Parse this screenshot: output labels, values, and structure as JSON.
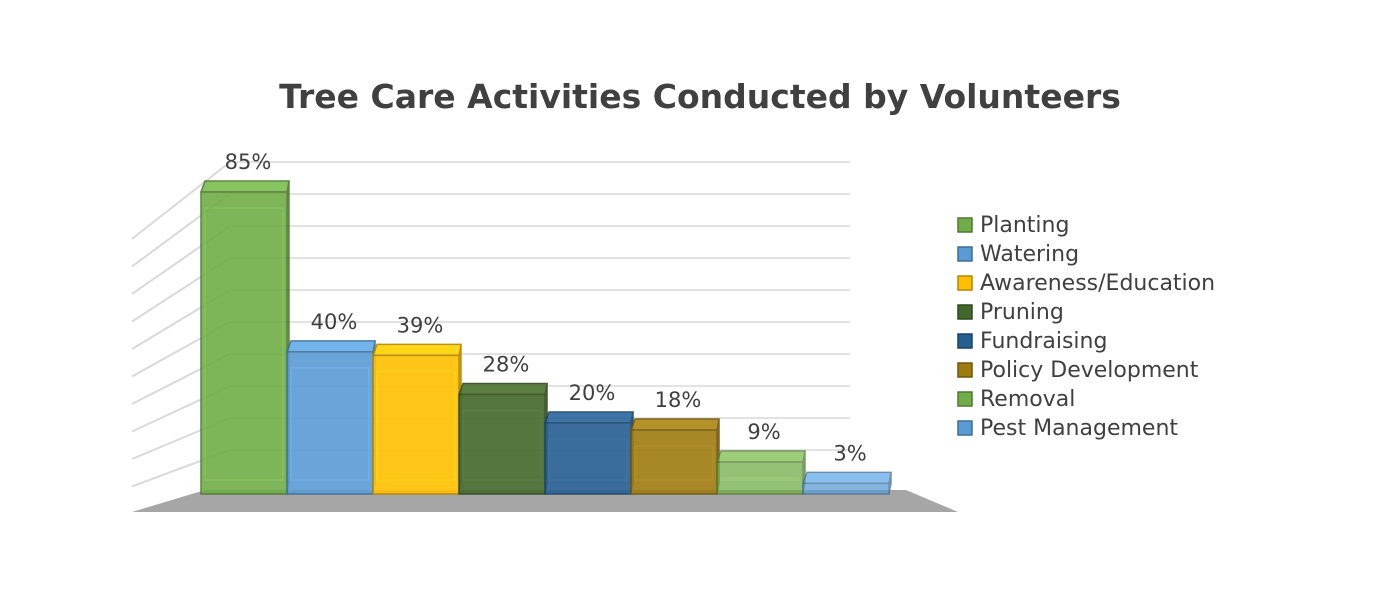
{
  "chart_data": {
    "type": "bar",
    "title": "Tree Care Activities Conducted by Volunteers",
    "categories": [
      "Planting",
      "Watering",
      "Awareness/Education",
      "Pruning",
      "Fundraising",
      "Policy Development",
      "Removal",
      "Pest Management"
    ],
    "values": [
      85,
      40,
      39,
      28,
      20,
      18,
      9,
      3
    ],
    "value_labels": [
      "85%",
      "40%",
      "39%",
      "28%",
      "20%",
      "18%",
      "9%",
      "3%"
    ],
    "unit": "%",
    "ylim": [
      0,
      100
    ],
    "grid": true,
    "legend_position": "right",
    "style": "3d-column",
    "colors": {
      "Planting": "#70ad47",
      "Watering": "#5b9bd5",
      "Awareness/Education": "#ffc000",
      "Pruning": "#43682b",
      "Fundraising": "#255e91",
      "Policy Development": "#9e7b0f",
      "Removal": "#70ad47",
      "Pest Management": "#5b9bd5"
    },
    "opacity": {
      "Removal": 0.75,
      "Pest Management": 0.75
    },
    "floor_color": "#a6a6a6",
    "gridline_color": "#d9d9d9"
  }
}
